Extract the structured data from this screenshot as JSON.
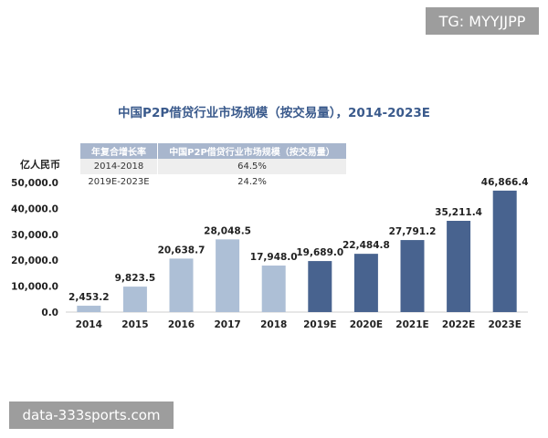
{
  "watermarks": {
    "top": "TG: MYYJJPP",
    "bottom": "data-333sports.com"
  },
  "colors": {
    "historical": "#adbfd6",
    "forecast": "#48638f",
    "title": "#3a5a8c",
    "table_header": "#a8b6cd"
  },
  "chart_data": {
    "type": "bar",
    "title": "中国P2P借贷行业市场规模（按交易量），2014-2023E",
    "ylabel": "亿人民币",
    "xlabel": "",
    "ylim": [
      0,
      50000
    ],
    "y_ticks": [
      "0.0",
      "10,000.0",
      "20,000.0",
      "30,000.0",
      "40,000.0",
      "50,000.0"
    ],
    "y_tick_values": [
      0,
      10000,
      20000,
      30000,
      40000,
      50000
    ],
    "grid": false,
    "categories": [
      "2014",
      "2015",
      "2016",
      "2017",
      "2018",
      "2019E",
      "2020E",
      "2021E",
      "2022E",
      "2023E"
    ],
    "values": [
      2453.2,
      9823.5,
      20638.7,
      28048.5,
      17948.0,
      19689.0,
      22484.8,
      27791.2,
      35211.4,
      46866.4
    ],
    "value_labels": [
      "2,453.2",
      "9,823.5",
      "20,638.7",
      "28,048.5",
      "17,948.0",
      "19,689.0",
      "22,484.8",
      "27,791.2",
      "35,211.4",
      "46,866.4"
    ],
    "forecast_from_index": 5,
    "inset_table": {
      "headers": [
        "年复合增长率",
        "中国P2P借贷行业市场规模（按交易量）"
      ],
      "rows": [
        [
          "2014-2018",
          "64.5%"
        ],
        [
          "2019E-2023E",
          "24.2%"
        ]
      ]
    }
  }
}
